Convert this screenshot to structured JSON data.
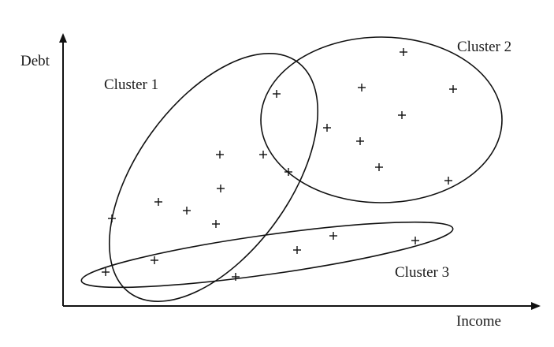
{
  "axes": {
    "y_label": "Debt",
    "x_label": "Income"
  },
  "clusters": [
    {
      "label": "Cluster 1"
    },
    {
      "label": "Cluster 2"
    },
    {
      "label": "Cluster 3"
    }
  ],
  "point_marker": "+",
  "colors": {
    "ink": "#111111",
    "background": "#ffffff"
  }
}
